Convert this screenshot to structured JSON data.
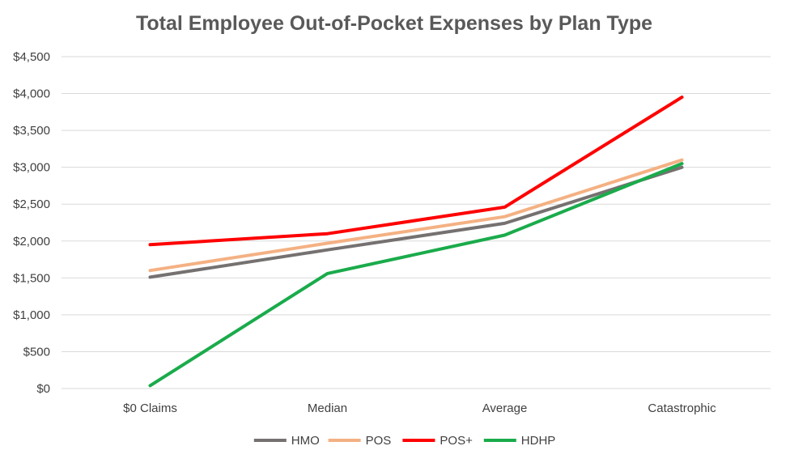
{
  "chart_data": {
    "type": "line",
    "title": "Total Employee Out-of-Pocket Expenses by Plan Type",
    "xlabel": "",
    "ylabel": "",
    "categories": [
      "$0 Claims",
      "Median",
      "Average",
      "Catastrophic"
    ],
    "ylim": [
      0,
      4500
    ],
    "yticks": [
      0,
      500,
      1000,
      1500,
      2000,
      2500,
      3000,
      3500,
      4000,
      4500
    ],
    "ytick_labels": [
      "$0",
      "$500",
      "$1,000",
      "$1,500",
      "$2,000",
      "$2,500",
      "$3,000",
      "$3,500",
      "$4,000",
      "$4,500"
    ],
    "grid": true,
    "legend_position": "bottom",
    "series": [
      {
        "name": "HMO",
        "color": "#767171",
        "values": [
          1510,
          1880,
          2240,
          3000
        ]
      },
      {
        "name": "POS",
        "color": "#f4b183",
        "values": [
          1600,
          1970,
          2330,
          3100
        ]
      },
      {
        "name": "POS+",
        "color": "#ff0000",
        "values": [
          1950,
          2100,
          2460,
          3950
        ]
      },
      {
        "name": "HDHP",
        "color": "#1aab4b",
        "values": [
          40,
          1560,
          2080,
          3050
        ]
      }
    ]
  }
}
